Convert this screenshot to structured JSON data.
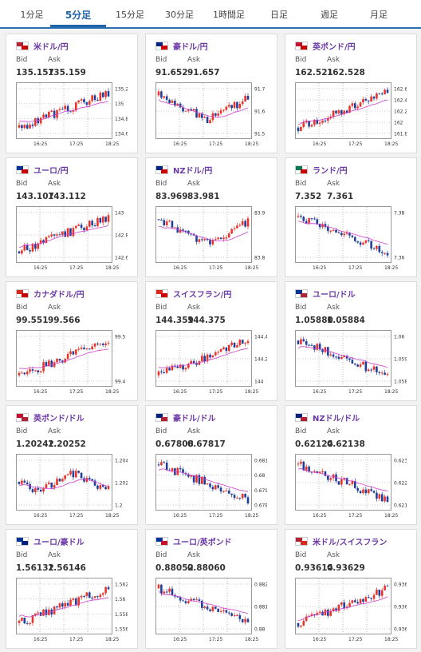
{
  "tabs": [
    "1分足",
    "5分足",
    "15分足",
    "30分足",
    "1時間足",
    "日足",
    "週足",
    "月足"
  ],
  "active_tab": 1,
  "colors": {
    "up": "#e8342b",
    "down": "#1f3f9a",
    "ma": "#d23fd2",
    "accent": "#1e62a8"
  },
  "labels": {
    "bid": "Bid",
    "ask": "Ask"
  },
  "x_ticks": [
    "16:25",
    "17:25",
    "18:25"
  ],
  "cards": [
    {
      "pair": "米ドル/円",
      "bid": "135.157",
      "ask": "135.159",
      "flag": [
        "#b22234",
        "#cc0000"
      ],
      "y_ticks": [
        "135.2",
        "135",
        "134.8",
        "134.6"
      ],
      "chart_data": {
        "type": "candlestick",
        "trend": "up",
        "ma": "rising"
      }
    },
    {
      "pair": "豪ドル/円",
      "bid": "91.652",
      "ask": "91.657",
      "flag": [
        "#00247d",
        "#cc0000"
      ],
      "y_ticks": [
        "91.7",
        "91.6",
        "91.5"
      ],
      "chart_data": {
        "type": "candlestick",
        "trend": "down-then-up",
        "ma": "flat"
      }
    },
    {
      "pair": "英ポンド/円",
      "bid": "162.521",
      "ask": "162.528",
      "flag": [
        "#c8102e",
        "#cc0000"
      ],
      "y_ticks": [
        "162.6",
        "162.4",
        "162.2",
        "162",
        "161.8"
      ],
      "chart_data": {
        "type": "candlestick",
        "trend": "up",
        "ma": "rising"
      }
    },
    {
      "pair": "ユーロ/円",
      "bid": "143.107",
      "ask": "143.112",
      "flag": [
        "#003399",
        "#cc0000"
      ],
      "y_ticks": [
        "143",
        "142.8",
        "142.6"
      ],
      "chart_data": {
        "type": "candlestick",
        "trend": "up",
        "ma": "rising"
      }
    },
    {
      "pair": "NZドル/円",
      "bid": "83.969",
      "ask": "83.981",
      "flag": [
        "#00247d",
        "#cc0000"
      ],
      "y_ticks": [
        "83.9",
        "83.8"
      ],
      "chart_data": {
        "type": "candlestick",
        "trend": "down-then-up",
        "ma": "flat"
      }
    },
    {
      "pair": "ランド/円",
      "bid": "7.352",
      "ask": "7.361",
      "flag": [
        "#007a4d",
        "#cc0000"
      ],
      "y_ticks": [
        "7.38",
        "7.36"
      ],
      "chart_data": {
        "type": "candlestick",
        "trend": "down",
        "ma": "falling"
      }
    },
    {
      "pair": "カナダドル/円",
      "bid": "99.551",
      "ask": "99.566",
      "flag": [
        "#d52b1e",
        "#cc0000"
      ],
      "y_ticks": [
        "99.5",
        "99.4"
      ],
      "chart_data": {
        "type": "candlestick",
        "trend": "up",
        "ma": "rising"
      }
    },
    {
      "pair": "スイスフラン/円",
      "bid": "144.359",
      "ask": "144.375",
      "flag": [
        "#da291c",
        "#cc0000"
      ],
      "y_ticks": [
        "144.4",
        "144.2",
        "144"
      ],
      "chart_data": {
        "type": "candlestick",
        "trend": "up",
        "ma": "rising"
      }
    },
    {
      "pair": "ユーロ/ドル",
      "bid": "1.05880",
      "ask": "1.05884",
      "flag": [
        "#003399",
        "#b22234"
      ],
      "y_ticks": [
        "1.06",
        "1.059",
        "1.058"
      ],
      "chart_data": {
        "type": "candlestick",
        "trend": "down",
        "ma": "falling"
      }
    },
    {
      "pair": "英ポンド/ドル",
      "bid": "1.20242",
      "ask": "1.20252",
      "flag": [
        "#c8102e",
        "#b22234"
      ],
      "y_ticks": [
        "1.204",
        "1.202",
        "1.2"
      ],
      "chart_data": {
        "type": "candlestick",
        "trend": "flat",
        "ma": "flat"
      }
    },
    {
      "pair": "豪ドル/ドル",
      "bid": "0.67808",
      "ask": "0.67817",
      "flag": [
        "#00247d",
        "#b22234"
      ],
      "y_ticks": [
        "0.681",
        "0.68",
        "0.679",
        "0.678"
      ],
      "chart_data": {
        "type": "candlestick",
        "trend": "down",
        "ma": "falling"
      }
    },
    {
      "pair": "NZドル/ドル",
      "bid": "0.62124",
      "ask": "0.62138",
      "flag": [
        "#00247d",
        "#b22234"
      ],
      "y_ticks": [
        "0.623",
        "0.622",
        "0.621"
      ],
      "chart_data": {
        "type": "candlestick",
        "trend": "down",
        "ma": "falling"
      }
    },
    {
      "pair": "ユーロ/豪ドル",
      "bid": "1.56132",
      "ask": "1.56146",
      "flag": [
        "#003399",
        "#00247d"
      ],
      "y_ticks": [
        "1.562",
        "1.56",
        "1.558",
        "1.556"
      ],
      "chart_data": {
        "type": "candlestick",
        "trend": "up",
        "ma": "rising"
      }
    },
    {
      "pair": "ユーロ/英ポンド",
      "bid": "0.88052",
      "ask": "0.88060",
      "flag": [
        "#003399",
        "#c8102e"
      ],
      "y_ticks": [
        "0.882",
        "0.881",
        "0.88"
      ],
      "chart_data": {
        "type": "candlestick",
        "trend": "down",
        "ma": "falling"
      }
    },
    {
      "pair": "米ドル/スイスフラン",
      "bid": "0.93614",
      "ask": "0.93629",
      "flag": [
        "#b22234",
        "#da291c"
      ],
      "y_ticks": [
        "0.936",
        "0.936",
        "0.936"
      ],
      "chart_data": {
        "type": "candlestick",
        "trend": "up",
        "ma": "rising"
      }
    }
  ]
}
